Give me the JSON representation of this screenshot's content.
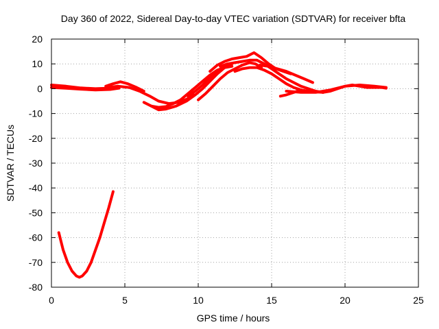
{
  "chart_data": {
    "type": "scatter",
    "title": "Day 360 of 2022, Sidereal Day-to-day VTEC variation (SDTVAR) for receiver bfta",
    "xlabel": "GPS time / hours",
    "ylabel": "SDTVAR / TECUs",
    "xlim": [
      0,
      25
    ],
    "ylim": [
      -80,
      20
    ],
    "xticks": [
      0,
      5,
      10,
      15,
      20,
      25
    ],
    "yticks": [
      20,
      10,
      0,
      -10,
      -20,
      -30,
      -40,
      -50,
      -60,
      -70,
      -80
    ],
    "x_tick_labels": [
      "0",
      "5",
      "10",
      "15",
      "20",
      "25"
    ],
    "y_tick_labels": [
      "20",
      "10",
      "0",
      "-10",
      "-20",
      "-30",
      "-40",
      "-50",
      "-60",
      "-70",
      "-80"
    ],
    "grid": true,
    "color": "#ff0000",
    "series": [
      {
        "name": "trace-1",
        "x": [
          0.0,
          1.0,
          2.0,
          3.0,
          3.8,
          4.3
        ],
        "y": [
          1.5,
          1.0,
          0.3,
          0.0,
          0.2,
          0.7
        ]
      },
      {
        "name": "trace-2",
        "x": [
          0.0,
          1.0,
          2.0,
          3.0,
          4.0,
          4.6
        ],
        "y": [
          0.5,
          0.2,
          -0.2,
          -0.5,
          -0.3,
          0.2
        ]
      },
      {
        "name": "trace-3",
        "x": [
          3.7,
          4.2,
          4.7,
          5.2,
          5.8,
          6.3
        ],
        "y": [
          1.0,
          2.0,
          2.8,
          2.0,
          0.5,
          -1.0
        ]
      },
      {
        "name": "trace-4",
        "x": [
          3.8,
          4.5,
          5.3,
          6.0,
          6.7,
          7.3,
          8.0,
          8.7,
          9.3,
          9.7
        ],
        "y": [
          0.5,
          1.0,
          0.5,
          -1.0,
          -3.0,
          -5.0,
          -6.0,
          -5.5,
          -4.0,
          -2.5
        ]
      },
      {
        "name": "trace-5",
        "x": [
          6.3,
          6.8,
          7.3,
          7.8,
          8.3,
          8.8,
          9.3,
          9.8,
          10.3,
          10.8,
          11.3,
          11.8,
          12.3
        ],
        "y": [
          -5.5,
          -7.0,
          -7.5,
          -7.2,
          -6.0,
          -4.5,
          -2.0,
          0.5,
          3.0,
          5.5,
          7.5,
          8.5,
          9.0
        ]
      },
      {
        "name": "trace-6",
        "x": [
          6.8,
          7.3,
          7.8,
          8.5,
          9.2,
          9.8,
          10.3,
          10.8,
          11.3,
          11.8
        ],
        "y": [
          -7.0,
          -8.5,
          -8.2,
          -7.0,
          -5.0,
          -2.5,
          0.0,
          3.0,
          6.0,
          8.5
        ]
      },
      {
        "name": "trace-7",
        "x": [
          9.3,
          9.8,
          10.3,
          10.8,
          11.3,
          11.8,
          12.3
        ],
        "y": [
          -3.0,
          -1.0,
          1.5,
          4.5,
          7.0,
          8.5,
          10.0
        ]
      },
      {
        "name": "trace-8",
        "x": [
          10.0,
          10.5,
          11.0,
          11.5,
          12.0,
          12.5,
          13.0,
          13.5,
          13.9,
          14.3
        ],
        "y": [
          -4.5,
          -2.0,
          1.0,
          4.0,
          6.5,
          8.0,
          9.5,
          10.5,
          10.0,
          8.5
        ]
      },
      {
        "name": "trace-9",
        "x": [
          10.8,
          11.3,
          11.8,
          12.3,
          12.8,
          13.3,
          13.8,
          14.3,
          14.8,
          15.3,
          15.8,
          16.3
        ],
        "y": [
          7.0,
          9.5,
          11.0,
          12.0,
          12.5,
          13.0,
          14.5,
          12.5,
          10.0,
          8.0,
          7.0,
          6.0
        ]
      },
      {
        "name": "trace-10",
        "x": [
          11.5,
          12.0,
          12.5,
          13.0,
          13.5,
          14.0,
          14.5,
          15.0,
          15.5,
          16.0,
          16.5,
          17.0,
          17.5,
          18.0,
          18.5
        ],
        "y": [
          9.0,
          10.0,
          10.5,
          11.0,
          11.5,
          11.5,
          10.0,
          8.0,
          6.0,
          4.0,
          2.5,
          1.0,
          0.0,
          -1.0,
          -1.5
        ]
      },
      {
        "name": "trace-11",
        "x": [
          12.5,
          13.0,
          13.5,
          14.0,
          14.5,
          15.0,
          15.5,
          16.0,
          16.5,
          17.0,
          17.5,
          18.0,
          18.5
        ],
        "y": [
          7.0,
          8.0,
          8.5,
          8.5,
          7.5,
          6.0,
          4.0,
          2.0,
          0.5,
          -0.5,
          -1.0,
          -1.3,
          -1.5
        ]
      },
      {
        "name": "trace-12",
        "x": [
          14.2,
          14.8,
          15.4,
          16.0,
          16.6,
          17.2,
          17.8
        ],
        "y": [
          9.5,
          9.0,
          8.0,
          7.0,
          5.5,
          4.0,
          2.5
        ]
      },
      {
        "name": "trace-13",
        "x": [
          15.6,
          16.0,
          16.5,
          17.0
        ],
        "y": [
          -3.0,
          -2.5,
          -1.5,
          -0.5
        ]
      },
      {
        "name": "trace-14",
        "x": [
          16.0,
          17.0,
          18.0,
          19.0,
          20.0,
          21.0,
          22.0,
          22.8
        ],
        "y": [
          -1.0,
          -1.5,
          -1.5,
          -0.5,
          1.0,
          1.5,
          1.0,
          0.5
        ]
      },
      {
        "name": "trace-15",
        "x": [
          18.5,
          19.0,
          19.5,
          20.0,
          20.5,
          21.0,
          21.5,
          22.0,
          22.5,
          22.8
        ],
        "y": [
          -1.5,
          -1.0,
          0.0,
          1.0,
          1.5,
          1.0,
          0.5,
          0.5,
          0.5,
          0.2
        ]
      },
      {
        "name": "trace-16",
        "x": [
          0.5,
          0.8,
          1.1,
          1.4,
          1.7,
          1.9,
          2.1,
          2.4,
          2.7,
          3.0,
          3.3,
          3.6,
          3.9,
          4.2
        ],
        "y": [
          -58,
          -65,
          -70,
          -73.5,
          -75.5,
          -76,
          -75.5,
          -73.5,
          -70,
          -65,
          -60,
          -54,
          -48,
          -41.5
        ]
      }
    ]
  }
}
